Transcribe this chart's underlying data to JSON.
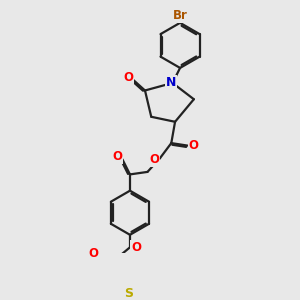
{
  "bg_color": "#e8e8e8",
  "bond_color": "#222222",
  "bond_width": 1.6,
  "dbo": 0.06,
  "atom_colors": {
    "O": "#ff0000",
    "N": "#0000cc",
    "S": "#bbaa00",
    "Br": "#aa5500",
    "C": "#222222"
  },
  "afs": 8.5,
  "figsize": [
    3.0,
    3.0
  ],
  "dpi": 100,
  "xlim": [
    0,
    10
  ],
  "ylim": [
    0,
    10
  ]
}
